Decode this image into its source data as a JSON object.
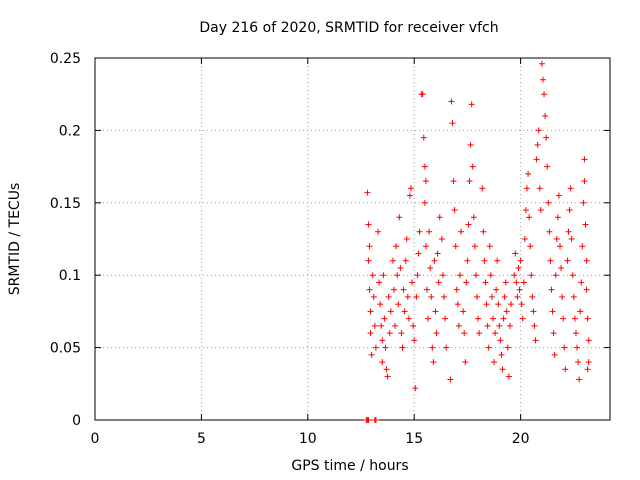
{
  "chart_data": {
    "type": "scatter",
    "title": "Day 216 of 2020, SRMTID for receiver vfch",
    "xlabel": "GPS time / hours",
    "ylabel": "SRMTID / TECUs",
    "xlim": [
      0,
      24.2
    ],
    "ylim": [
      0,
      0.25
    ],
    "x_ticks": [
      0,
      5,
      10,
      15,
      20
    ],
    "x_tick_labels": [
      "0",
      "5",
      "10",
      "15",
      "20"
    ],
    "y_ticks": [
      0,
      0.05,
      0.1,
      0.15,
      0.2,
      0.25
    ],
    "y_tick_labels": [
      "0",
      "0.05",
      "0.1",
      "0.15",
      "0.2",
      "0.25"
    ],
    "grid": true,
    "marker": "+",
    "series": [
      {
        "name": "SRMTID",
        "color": "#ff0000",
        "points": [
          [
            12.75,
            0.0
          ],
          [
            12.8,
            0.0
          ],
          [
            12.85,
            0.0
          ],
          [
            13.15,
            0.0
          ],
          [
            13.2,
            0.0
          ],
          [
            12.8,
            0.157
          ],
          [
            12.85,
            0.135
          ],
          [
            12.85,
            0.11
          ],
          [
            12.9,
            0.12
          ],
          [
            12.9,
            0.09
          ],
          [
            12.95,
            0.075
          ],
          [
            12.95,
            0.06
          ],
          [
            13.0,
            0.045
          ],
          [
            13.05,
            0.1
          ],
          [
            13.1,
            0.085
          ],
          [
            13.15,
            0.065
          ],
          [
            13.2,
            0.05
          ],
          [
            13.3,
            0.13
          ],
          [
            13.35,
            0.095
          ],
          [
            13.4,
            0.08
          ],
          [
            13.45,
            0.065
          ],
          [
            13.5,
            0.055
          ],
          [
            13.5,
            0.04
          ],
          [
            13.55,
            0.1
          ],
          [
            13.6,
            0.07
          ],
          [
            13.65,
            0.05
          ],
          [
            13.7,
            0.035
          ],
          [
            13.75,
            0.03
          ],
          [
            13.8,
            0.085
          ],
          [
            13.85,
            0.06
          ],
          [
            13.9,
            0.075
          ],
          [
            14.0,
            0.11
          ],
          [
            14.05,
            0.09
          ],
          [
            14.1,
            0.065
          ],
          [
            14.15,
            0.12
          ],
          [
            14.2,
            0.1
          ],
          [
            14.25,
            0.08
          ],
          [
            14.3,
            0.14
          ],
          [
            14.35,
            0.105
          ],
          [
            14.4,
            0.06
          ],
          [
            14.45,
            0.05
          ],
          [
            14.5,
            0.09
          ],
          [
            14.55,
            0.075
          ],
          [
            14.6,
            0.11
          ],
          [
            14.65,
            0.125
          ],
          [
            14.7,
            0.085
          ],
          [
            14.75,
            0.07
          ],
          [
            14.8,
            0.155
          ],
          [
            14.85,
            0.16
          ],
          [
            14.9,
            0.095
          ],
          [
            14.95,
            0.065
          ],
          [
            15.0,
            0.055
          ],
          [
            15.05,
            0.022
          ],
          [
            15.1,
            0.085
          ],
          [
            15.15,
            0.1
          ],
          [
            15.2,
            0.115
          ],
          [
            15.25,
            0.13
          ],
          [
            15.35,
            0.225
          ],
          [
            15.4,
            0.225
          ],
          [
            15.45,
            0.195
          ],
          [
            15.5,
            0.175
          ],
          [
            15.55,
            0.165
          ],
          [
            15.5,
            0.15
          ],
          [
            15.55,
            0.12
          ],
          [
            15.6,
            0.09
          ],
          [
            15.65,
            0.07
          ],
          [
            15.7,
            0.13
          ],
          [
            15.75,
            0.105
          ],
          [
            15.8,
            0.085
          ],
          [
            15.85,
            0.05
          ],
          [
            15.9,
            0.04
          ],
          [
            15.95,
            0.11
          ],
          [
            16.0,
            0.075
          ],
          [
            16.05,
            0.06
          ],
          [
            16.1,
            0.115
          ],
          [
            16.15,
            0.095
          ],
          [
            16.2,
            0.14
          ],
          [
            16.3,
            0.125
          ],
          [
            16.35,
            0.1
          ],
          [
            16.4,
            0.085
          ],
          [
            16.45,
            0.07
          ],
          [
            16.5,
            0.05
          ],
          [
            16.7,
            0.028
          ],
          [
            16.75,
            0.22
          ],
          [
            16.8,
            0.205
          ],
          [
            16.85,
            0.165
          ],
          [
            16.9,
            0.145
          ],
          [
            16.95,
            0.12
          ],
          [
            17.0,
            0.09
          ],
          [
            17.05,
            0.08
          ],
          [
            17.1,
            0.065
          ],
          [
            17.15,
            0.1
          ],
          [
            17.2,
            0.13
          ],
          [
            17.3,
            0.075
          ],
          [
            17.35,
            0.06
          ],
          [
            17.4,
            0.04
          ],
          [
            17.45,
            0.095
          ],
          [
            17.5,
            0.11
          ],
          [
            17.55,
            0.135
          ],
          [
            17.6,
            0.165
          ],
          [
            17.65,
            0.19
          ],
          [
            17.7,
            0.218
          ],
          [
            17.75,
            0.175
          ],
          [
            17.8,
            0.14
          ],
          [
            17.85,
            0.12
          ],
          [
            17.9,
            0.1
          ],
          [
            17.95,
            0.085
          ],
          [
            18.0,
            0.07
          ],
          [
            18.05,
            0.06
          ],
          [
            18.2,
            0.16
          ],
          [
            18.25,
            0.13
          ],
          [
            18.3,
            0.11
          ],
          [
            18.35,
            0.095
          ],
          [
            18.4,
            0.08
          ],
          [
            18.45,
            0.065
          ],
          [
            18.5,
            0.05
          ],
          [
            18.55,
            0.12
          ],
          [
            18.6,
            0.1
          ],
          [
            18.65,
            0.085
          ],
          [
            18.7,
            0.07
          ],
          [
            18.75,
            0.04
          ],
          [
            18.8,
            0.06
          ],
          [
            18.85,
            0.09
          ],
          [
            18.9,
            0.11
          ],
          [
            18.95,
            0.08
          ],
          [
            19.0,
            0.065
          ],
          [
            19.05,
            0.055
          ],
          [
            19.1,
            0.045
          ],
          [
            19.15,
            0.035
          ],
          [
            19.2,
            0.07
          ],
          [
            19.25,
            0.085
          ],
          [
            19.3,
            0.095
          ],
          [
            19.35,
            0.075
          ],
          [
            19.4,
            0.05
          ],
          [
            19.45,
            0.03
          ],
          [
            19.5,
            0.065
          ],
          [
            19.55,
            0.08
          ],
          [
            19.7,
            0.1
          ],
          [
            19.75,
            0.115
          ],
          [
            19.8,
            0.095
          ],
          [
            19.85,
            0.085
          ],
          [
            19.9,
            0.105
          ],
          [
            19.95,
            0.09
          ],
          [
            20.0,
            0.11
          ],
          [
            20.05,
            0.08
          ],
          [
            20.1,
            0.07
          ],
          [
            20.15,
            0.095
          ],
          [
            20.2,
            0.125
          ],
          [
            20.25,
            0.145
          ],
          [
            20.3,
            0.16
          ],
          [
            20.35,
            0.17
          ],
          [
            20.4,
            0.14
          ],
          [
            20.45,
            0.12
          ],
          [
            20.5,
            0.1
          ],
          [
            20.55,
            0.085
          ],
          [
            20.6,
            0.075
          ],
          [
            20.65,
            0.065
          ],
          [
            20.7,
            0.055
          ],
          [
            20.75,
            0.18
          ],
          [
            20.8,
            0.19
          ],
          [
            20.85,
            0.2
          ],
          [
            20.9,
            0.16
          ],
          [
            20.95,
            0.145
          ],
          [
            21.0,
            0.246
          ],
          [
            21.05,
            0.235
          ],
          [
            21.1,
            0.225
          ],
          [
            21.15,
            0.21
          ],
          [
            21.2,
            0.195
          ],
          [
            21.25,
            0.175
          ],
          [
            21.3,
            0.15
          ],
          [
            21.35,
            0.13
          ],
          [
            21.4,
            0.11
          ],
          [
            21.45,
            0.09
          ],
          [
            21.5,
            0.075
          ],
          [
            21.55,
            0.06
          ],
          [
            21.6,
            0.045
          ],
          [
            21.65,
            0.1
          ],
          [
            21.7,
            0.125
          ],
          [
            21.75,
            0.14
          ],
          [
            21.8,
            0.155
          ],
          [
            21.85,
            0.12
          ],
          [
            21.9,
            0.105
          ],
          [
            21.95,
            0.085
          ],
          [
            22.0,
            0.07
          ],
          [
            22.05,
            0.05
          ],
          [
            22.1,
            0.035
          ],
          [
            22.2,
            0.11
          ],
          [
            22.25,
            0.13
          ],
          [
            22.3,
            0.145
          ],
          [
            22.35,
            0.16
          ],
          [
            22.4,
            0.125
          ],
          [
            22.45,
            0.1
          ],
          [
            22.5,
            0.085
          ],
          [
            22.55,
            0.07
          ],
          [
            22.6,
            0.06
          ],
          [
            22.65,
            0.05
          ],
          [
            22.7,
            0.04
          ],
          [
            22.75,
            0.028
          ],
          [
            22.8,
            0.075
          ],
          [
            22.85,
            0.095
          ],
          [
            22.9,
            0.12
          ],
          [
            22.95,
            0.15
          ],
          [
            23.0,
            0.18
          ],
          [
            23.0,
            0.165
          ],
          [
            23.05,
            0.135
          ],
          [
            23.1,
            0.11
          ],
          [
            23.1,
            0.09
          ],
          [
            23.15,
            0.07
          ],
          [
            23.2,
            0.055
          ],
          [
            23.2,
            0.04
          ],
          [
            23.15,
            0.035
          ]
        ]
      }
    ]
  }
}
